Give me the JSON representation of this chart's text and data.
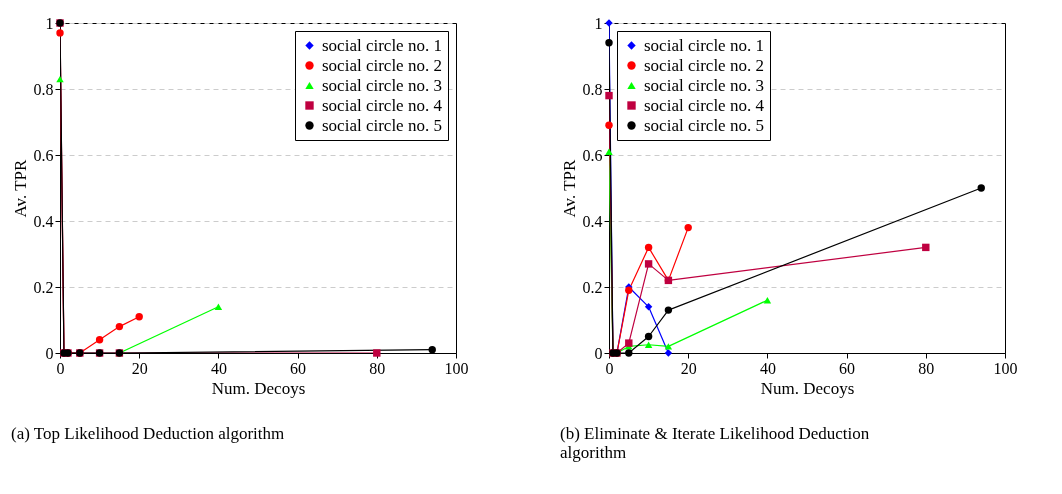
{
  "chart_data": [
    {
      "type": "line",
      "title": "(a) Top Likelihood Deduction algorithm",
      "xlabel": "Num. Decoys",
      "ylabel": "Av. TPR",
      "xlim": [
        0,
        100
      ],
      "xticks": [
        0,
        20,
        40,
        60,
        80,
        100
      ],
      "ylim": [
        0,
        1
      ],
      "yticks": [
        0,
        0.2,
        0.4,
        0.6,
        0.8,
        1
      ],
      "grid": "y",
      "legend": "top right",
      "line_style": "solid",
      "series": [
        {
          "name": "social circle no. 1",
          "color": "#0000ff",
          "marker": "diamond"
        },
        {
          "name": "social circle no. 2",
          "color": "#ff0000",
          "marker": "circle",
          "x": [
            0,
            1,
            2,
            5,
            10,
            15,
            20
          ],
          "values": [
            0.97,
            0,
            0,
            0,
            0.04,
            0.08,
            0.11
          ]
        },
        {
          "name": "social circle no. 3",
          "color": "#00ff00",
          "marker": "triangle",
          "x": [
            0,
            1,
            2,
            5,
            10,
            15,
            40
          ],
          "values": [
            0.83,
            null,
            null,
            null,
            null,
            0,
            0.14
          ]
        },
        {
          "name": "social circle no. 4",
          "color": "#bf0040",
          "marker": "square",
          "x": [
            0,
            1,
            2,
            5,
            10,
            15,
            80
          ],
          "values": [
            1,
            0,
            0,
            0,
            0,
            0,
            0
          ]
        },
        {
          "name": "social circle no. 5",
          "color": "#000000",
          "marker": "circle",
          "x": [
            0,
            1,
            2,
            5,
            10,
            15,
            94
          ],
          "values": [
            1,
            0,
            0,
            0,
            0,
            0,
            0.01
          ]
        }
      ]
    },
    {
      "type": "line",
      "title": "(b) Eliminate & Iterate Likelihood Deduction algorithm",
      "xlabel": "Num. Decoys",
      "ylabel": "Av. TPR",
      "xlim": [
        0,
        100
      ],
      "xticks": [
        0,
        20,
        40,
        60,
        80,
        100
      ],
      "ylim": [
        0,
        1
      ],
      "yticks": [
        0,
        0.2,
        0.4,
        0.6,
        0.8,
        1
      ],
      "grid": "y",
      "legend": "top left",
      "line_style": "solid",
      "series": [
        {
          "name": "social circle no. 1",
          "color": "#0000ff",
          "marker": "diamond",
          "x": [
            0,
            1,
            2,
            5,
            10,
            15
          ],
          "values": [
            1,
            0,
            0,
            0.2,
            0.14,
            0
          ]
        },
        {
          "name": "social circle no. 2",
          "color": "#ff0000",
          "marker": "circle",
          "x": [
            0,
            1,
            2,
            5,
            10,
            15,
            20
          ],
          "values": [
            0.69,
            0,
            0,
            0.19,
            0.32,
            0.22,
            0.38
          ]
        },
        {
          "name": "social circle no. 3",
          "color": "#00ff00",
          "marker": "triangle",
          "x": [
            0,
            1,
            2,
            5,
            10,
            15,
            40
          ],
          "values": [
            0.61,
            0,
            0,
            0.02,
            0.025,
            0.02,
            0.16
          ]
        },
        {
          "name": "social circle no. 4",
          "color": "#bf0040",
          "marker": "square",
          "x": [
            0,
            1,
            2,
            5,
            10,
            15,
            80
          ],
          "values": [
            0.78,
            0,
            0,
            0.03,
            0.27,
            0.22,
            0.32
          ]
        },
        {
          "name": "social circle no. 5",
          "color": "#000000",
          "marker": "circle",
          "x": [
            0,
            1,
            2,
            5,
            10,
            15,
            94
          ],
          "values": [
            0.94,
            0,
            0,
            0,
            0.05,
            0.13,
            0.5
          ]
        }
      ]
    }
  ]
}
